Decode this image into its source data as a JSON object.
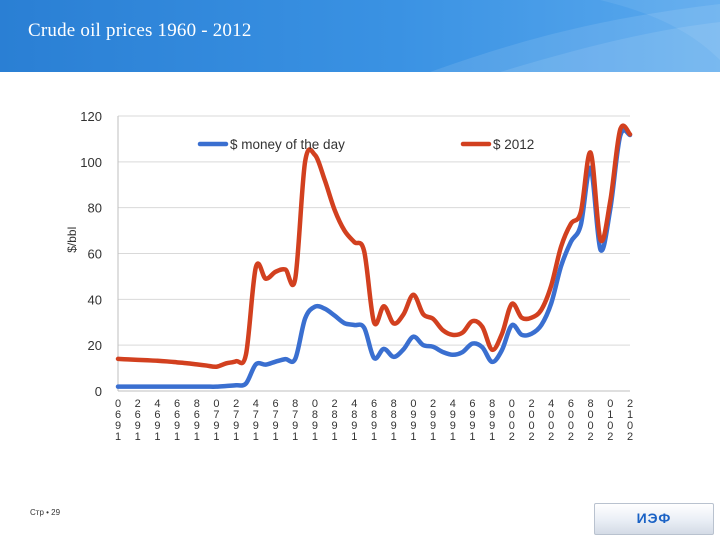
{
  "slide": {
    "title": "Crude oil prices 1960 - 2012",
    "footer_page": "Стр • 29",
    "logo_text": "ИЭФ"
  },
  "colors": {
    "header_blue": "#2f86da",
    "series_nominal": "#3a6fd0",
    "series_real": "#d2401f",
    "grid": "#d9d9d9"
  },
  "chart_data": {
    "type": "line",
    "title": "",
    "xlabel": "",
    "ylabel": "$/bbl",
    "ylim": [
      0,
      120
    ],
    "yticks": [
      0,
      20,
      40,
      60,
      80,
      100,
      120
    ],
    "xlim": [
      1960,
      2012
    ],
    "xticks": [
      "1960",
      "1962",
      "1964",
      "1966",
      "1968",
      "1970",
      "1972",
      "1974",
      "1976",
      "1978",
      "1980",
      "1982",
      "1984",
      "1986",
      "1988",
      "1990",
      "1992",
      "1994",
      "1996",
      "1998",
      "2000",
      "2002",
      "2004",
      "2006",
      "2008",
      "2010",
      "2012"
    ],
    "grid": "horizontal",
    "legend": "top",
    "series": [
      {
        "name": "$ money of the day",
        "color": "#3a6fd0",
        "points": [
          [
            1960,
            1.9
          ],
          [
            1961,
            1.9
          ],
          [
            1962,
            1.9
          ],
          [
            1963,
            1.9
          ],
          [
            1964,
            1.9
          ],
          [
            1965,
            1.9
          ],
          [
            1966,
            1.9
          ],
          [
            1967,
            1.9
          ],
          [
            1968,
            1.9
          ],
          [
            1969,
            1.9
          ],
          [
            1970,
            1.9
          ],
          [
            1971,
            2.2
          ],
          [
            1972,
            2.5
          ],
          [
            1973,
            3.3
          ],
          [
            1974,
            11.6
          ],
          [
            1975,
            11.5
          ],
          [
            1976,
            12.8
          ],
          [
            1977,
            13.9
          ],
          [
            1978,
            14.0
          ],
          [
            1979,
            31.6
          ],
          [
            1980,
            36.8
          ],
          [
            1981,
            35.9
          ],
          [
            1982,
            32.9
          ],
          [
            1983,
            29.6
          ],
          [
            1984,
            28.8
          ],
          [
            1985,
            27.6
          ],
          [
            1986,
            14.4
          ],
          [
            1987,
            18.4
          ],
          [
            1988,
            14.9
          ],
          [
            1989,
            18.2
          ],
          [
            1990,
            23.7
          ],
          [
            1991,
            20.0
          ],
          [
            1992,
            19.3
          ],
          [
            1993,
            17.0
          ],
          [
            1994,
            15.8
          ],
          [
            1995,
            17.0
          ],
          [
            1996,
            20.7
          ],
          [
            1997,
            19.1
          ],
          [
            1998,
            12.7
          ],
          [
            1999,
            17.9
          ],
          [
            2000,
            28.7
          ],
          [
            2001,
            24.5
          ],
          [
            2002,
            25.0
          ],
          [
            2003,
            28.8
          ],
          [
            2004,
            38.3
          ],
          [
            2005,
            54.5
          ],
          [
            2006,
            65.1
          ],
          [
            2007,
            72.4
          ],
          [
            2008,
            97.3
          ],
          [
            2009,
            61.7
          ],
          [
            2010,
            79.5
          ],
          [
            2011,
            111.3
          ],
          [
            2012,
            111.7
          ]
        ]
      },
      {
        "name": "$ 2012",
        "color": "#d2401f",
        "points": [
          [
            1960,
            14.0
          ],
          [
            1961,
            13.8
          ],
          [
            1962,
            13.6
          ],
          [
            1963,
            13.4
          ],
          [
            1964,
            13.2
          ],
          [
            1965,
            12.9
          ],
          [
            1966,
            12.5
          ],
          [
            1967,
            12.1
          ],
          [
            1968,
            11.6
          ],
          [
            1969,
            11.1
          ],
          [
            1970,
            10.6
          ],
          [
            1971,
            12.1
          ],
          [
            1972,
            13.0
          ],
          [
            1973,
            16.0
          ],
          [
            1974,
            54.0
          ],
          [
            1975,
            49.0
          ],
          [
            1976,
            52.0
          ],
          [
            1977,
            53.0
          ],
          [
            1978,
            49.0
          ],
          [
            1979,
            100.0
          ],
          [
            1980,
            103.0
          ],
          [
            1981,
            92.0
          ],
          [
            1982,
            79.0
          ],
          [
            1983,
            70.0
          ],
          [
            1984,
            65.0
          ],
          [
            1985,
            61.0
          ],
          [
            1986,
            30.0
          ],
          [
            1987,
            37.0
          ],
          [
            1988,
            29.5
          ],
          [
            1989,
            33.5
          ],
          [
            1990,
            42.0
          ],
          [
            1991,
            33.5
          ],
          [
            1992,
            31.5
          ],
          [
            1993,
            26.5
          ],
          [
            1994,
            24.5
          ],
          [
            1995,
            25.5
          ],
          [
            1996,
            30.5
          ],
          [
            1997,
            28.0
          ],
          [
            1998,
            18.0
          ],
          [
            1999,
            25.0
          ],
          [
            2000,
            38.0
          ],
          [
            2001,
            32.0
          ],
          [
            2002,
            32.0
          ],
          [
            2003,
            35.5
          ],
          [
            2004,
            46.0
          ],
          [
            2005,
            63.0
          ],
          [
            2006,
            73.0
          ],
          [
            2007,
            78.0
          ],
          [
            2008,
            104.0
          ],
          [
            2009,
            66.0
          ],
          [
            2010,
            83.0
          ],
          [
            2011,
            114.0
          ],
          [
            2012,
            112.0
          ]
        ]
      }
    ]
  }
}
